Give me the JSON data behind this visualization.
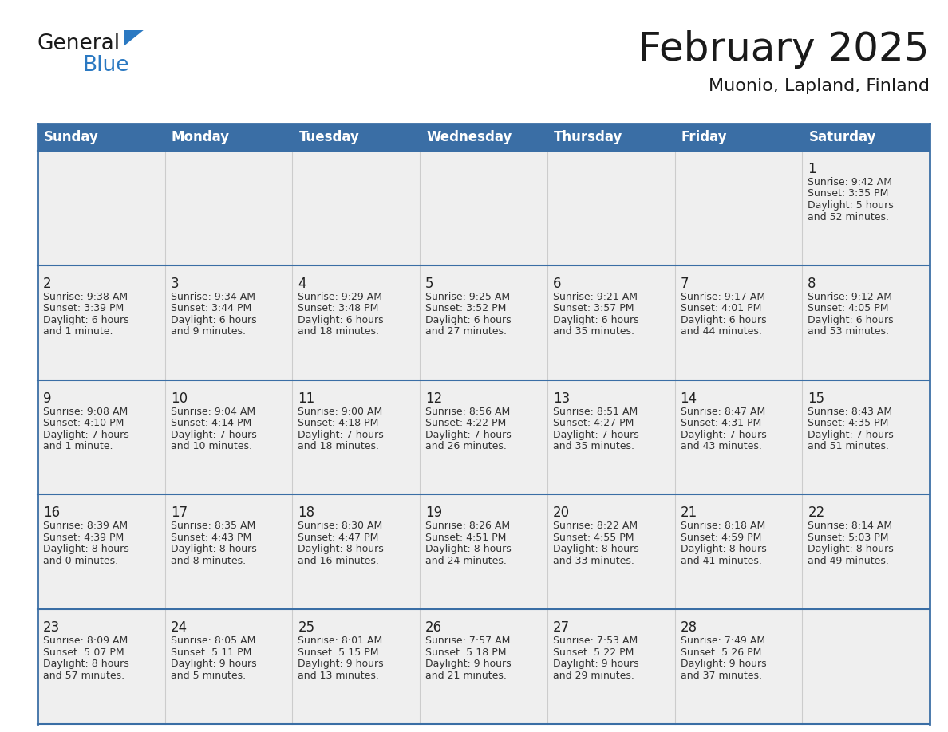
{
  "title": "February 2025",
  "subtitle": "Muonio, Lapland, Finland",
  "header_bg_color": "#3a6ea5",
  "header_text_color": "#ffffff",
  "cell_bg_color": "#efefef",
  "border_color": "#3a6ea5",
  "separator_color": "#aaaaaa",
  "day_headers": [
    "Sunday",
    "Monday",
    "Tuesday",
    "Wednesday",
    "Thursday",
    "Friday",
    "Saturday"
  ],
  "days": [
    {
      "day": 1,
      "col": 6,
      "row": 0,
      "sunrise": "9:42 AM",
      "sunset": "3:35 PM",
      "daylight_hours": 5,
      "daylight_mins": 52
    },
    {
      "day": 2,
      "col": 0,
      "row": 1,
      "sunrise": "9:38 AM",
      "sunset": "3:39 PM",
      "daylight_hours": 6,
      "daylight_mins": 1
    },
    {
      "day": 3,
      "col": 1,
      "row": 1,
      "sunrise": "9:34 AM",
      "sunset": "3:44 PM",
      "daylight_hours": 6,
      "daylight_mins": 9
    },
    {
      "day": 4,
      "col": 2,
      "row": 1,
      "sunrise": "9:29 AM",
      "sunset": "3:48 PM",
      "daylight_hours": 6,
      "daylight_mins": 18
    },
    {
      "day": 5,
      "col": 3,
      "row": 1,
      "sunrise": "9:25 AM",
      "sunset": "3:52 PM",
      "daylight_hours": 6,
      "daylight_mins": 27
    },
    {
      "day": 6,
      "col": 4,
      "row": 1,
      "sunrise": "9:21 AM",
      "sunset": "3:57 PM",
      "daylight_hours": 6,
      "daylight_mins": 35
    },
    {
      "day": 7,
      "col": 5,
      "row": 1,
      "sunrise": "9:17 AM",
      "sunset": "4:01 PM",
      "daylight_hours": 6,
      "daylight_mins": 44
    },
    {
      "day": 8,
      "col": 6,
      "row": 1,
      "sunrise": "9:12 AM",
      "sunset": "4:05 PM",
      "daylight_hours": 6,
      "daylight_mins": 53
    },
    {
      "day": 9,
      "col": 0,
      "row": 2,
      "sunrise": "9:08 AM",
      "sunset": "4:10 PM",
      "daylight_hours": 7,
      "daylight_mins": 1
    },
    {
      "day": 10,
      "col": 1,
      "row": 2,
      "sunrise": "9:04 AM",
      "sunset": "4:14 PM",
      "daylight_hours": 7,
      "daylight_mins": 10
    },
    {
      "day": 11,
      "col": 2,
      "row": 2,
      "sunrise": "9:00 AM",
      "sunset": "4:18 PM",
      "daylight_hours": 7,
      "daylight_mins": 18
    },
    {
      "day": 12,
      "col": 3,
      "row": 2,
      "sunrise": "8:56 AM",
      "sunset": "4:22 PM",
      "daylight_hours": 7,
      "daylight_mins": 26
    },
    {
      "day": 13,
      "col": 4,
      "row": 2,
      "sunrise": "8:51 AM",
      "sunset": "4:27 PM",
      "daylight_hours": 7,
      "daylight_mins": 35
    },
    {
      "day": 14,
      "col": 5,
      "row": 2,
      "sunrise": "8:47 AM",
      "sunset": "4:31 PM",
      "daylight_hours": 7,
      "daylight_mins": 43
    },
    {
      "day": 15,
      "col": 6,
      "row": 2,
      "sunrise": "8:43 AM",
      "sunset": "4:35 PM",
      "daylight_hours": 7,
      "daylight_mins": 51
    },
    {
      "day": 16,
      "col": 0,
      "row": 3,
      "sunrise": "8:39 AM",
      "sunset": "4:39 PM",
      "daylight_hours": 8,
      "daylight_mins": 0
    },
    {
      "day": 17,
      "col": 1,
      "row": 3,
      "sunrise": "8:35 AM",
      "sunset": "4:43 PM",
      "daylight_hours": 8,
      "daylight_mins": 8
    },
    {
      "day": 18,
      "col": 2,
      "row": 3,
      "sunrise": "8:30 AM",
      "sunset": "4:47 PM",
      "daylight_hours": 8,
      "daylight_mins": 16
    },
    {
      "day": 19,
      "col": 3,
      "row": 3,
      "sunrise": "8:26 AM",
      "sunset": "4:51 PM",
      "daylight_hours": 8,
      "daylight_mins": 24
    },
    {
      "day": 20,
      "col": 4,
      "row": 3,
      "sunrise": "8:22 AM",
      "sunset": "4:55 PM",
      "daylight_hours": 8,
      "daylight_mins": 33
    },
    {
      "day": 21,
      "col": 5,
      "row": 3,
      "sunrise": "8:18 AM",
      "sunset": "4:59 PM",
      "daylight_hours": 8,
      "daylight_mins": 41
    },
    {
      "day": 22,
      "col": 6,
      "row": 3,
      "sunrise": "8:14 AM",
      "sunset": "5:03 PM",
      "daylight_hours": 8,
      "daylight_mins": 49
    },
    {
      "day": 23,
      "col": 0,
      "row": 4,
      "sunrise": "8:09 AM",
      "sunset": "5:07 PM",
      "daylight_hours": 8,
      "daylight_mins": 57
    },
    {
      "day": 24,
      "col": 1,
      "row": 4,
      "sunrise": "8:05 AM",
      "sunset": "5:11 PM",
      "daylight_hours": 9,
      "daylight_mins": 5
    },
    {
      "day": 25,
      "col": 2,
      "row": 4,
      "sunrise": "8:01 AM",
      "sunset": "5:15 PM",
      "daylight_hours": 9,
      "daylight_mins": 13
    },
    {
      "day": 26,
      "col": 3,
      "row": 4,
      "sunrise": "7:57 AM",
      "sunset": "5:18 PM",
      "daylight_hours": 9,
      "daylight_mins": 21
    },
    {
      "day": 27,
      "col": 4,
      "row": 4,
      "sunrise": "7:53 AM",
      "sunset": "5:22 PM",
      "daylight_hours": 9,
      "daylight_mins": 29
    },
    {
      "day": 28,
      "col": 5,
      "row": 4,
      "sunrise": "7:49 AM",
      "sunset": "5:26 PM",
      "daylight_hours": 9,
      "daylight_mins": 37
    }
  ],
  "logo_color_general": "#1a1a1a",
  "logo_color_blue": "#2b79c2",
  "logo_triangle_color": "#2b79c2",
  "title_fontsize": 36,
  "subtitle_fontsize": 16,
  "header_fontsize": 12,
  "day_num_fontsize": 12,
  "cell_text_fontsize": 9
}
